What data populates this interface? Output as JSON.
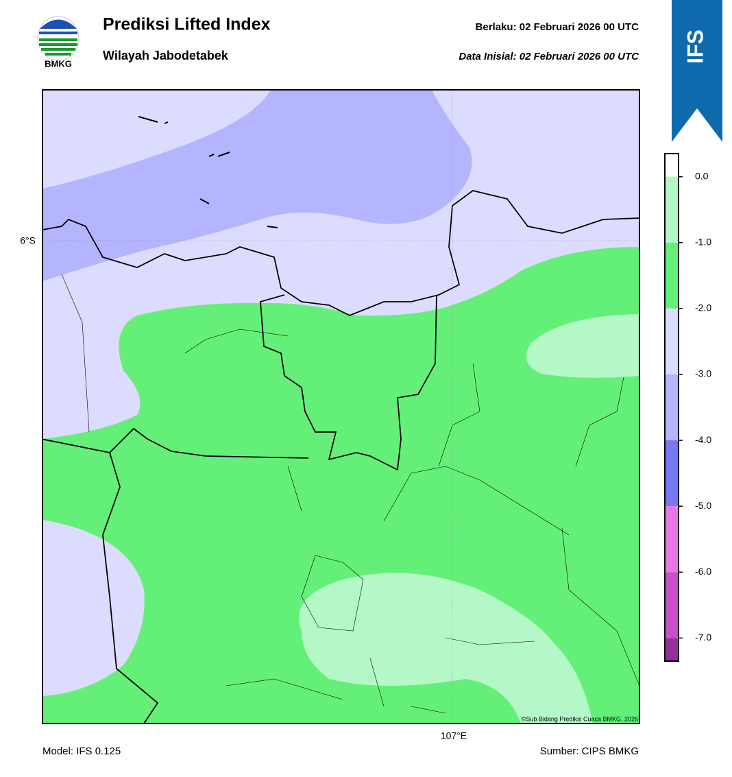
{
  "header": {
    "logo_text": "BMKG",
    "title": "Prediksi Lifted Index",
    "subtitle": "Wilayah Jabodetabek",
    "valid": "Berlaku:  02 Februari 2026 00 UTC",
    "initial": "Data Inisial:  02 Februari 2026 00 UTC",
    "badge": "IFS"
  },
  "map": {
    "lat_label": "6°S",
    "lon_label": "107°E",
    "copyright": "©Sub Bidang Prediksi Cuaca BMKG, 2026"
  },
  "colorbar": {
    "lim": [
      -7.35,
      0.35
    ],
    "ticks": [
      {
        "value": 0,
        "label": "0.0"
      },
      {
        "value": -1,
        "label": "-1.0"
      },
      {
        "value": -2,
        "label": "-2.0"
      },
      {
        "value": -3,
        "label": "-3.0"
      },
      {
        "value": -4,
        "label": "-4.0"
      },
      {
        "value": -5,
        "label": "-5.0"
      },
      {
        "value": -6,
        "label": "-6.0"
      },
      {
        "value": -7,
        "label": "-7.0"
      }
    ],
    "colors": [
      "#ffffff",
      "#b4f8c8",
      "#64f078",
      "#dcdcff",
      "#b4b4ff",
      "#7878f0",
      "#e678e6",
      "#c850c8",
      "#963296"
    ]
  },
  "footer": {
    "model": "Model: IFS 0.125",
    "source": "Sumber: CIPS BMKG"
  }
}
